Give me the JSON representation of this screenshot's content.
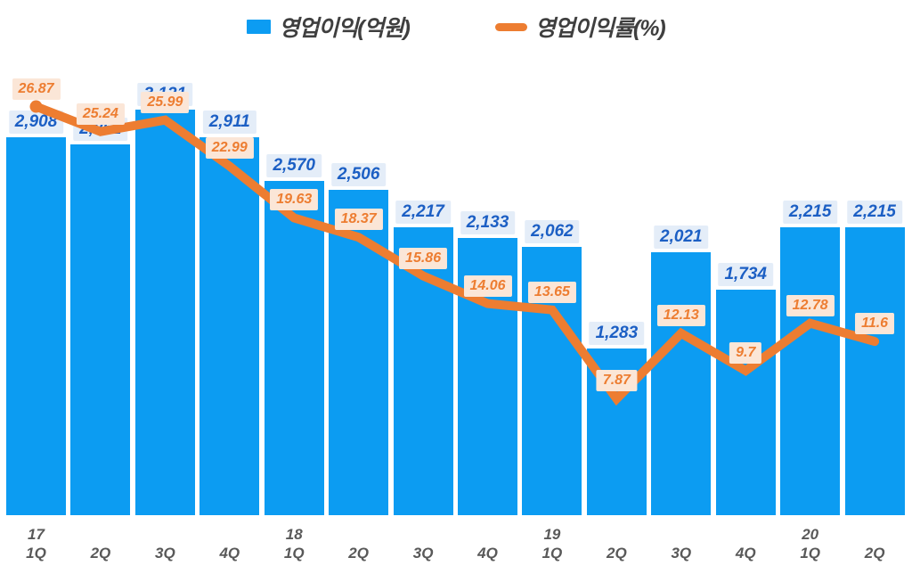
{
  "legend": {
    "bar_label": "영업이익(억원)",
    "line_label": "영업이익률(%)"
  },
  "colors": {
    "bar": "#0c9cf2",
    "line": "#ed7d31",
    "bar_label_text": "#1c5fc4",
    "bar_label_bg": "#e4edf8",
    "line_label_text": "#ed7d31",
    "line_label_bg": "#fbe6d7",
    "axis_text": "#595959",
    "legend_text": "#3f3f3f"
  },
  "chart_data": {
    "type": "combo-bar-line",
    "title": "",
    "grid": false,
    "legend_position": "top-center",
    "categories": [
      "17 1Q",
      "2Q",
      "3Q",
      "4Q",
      "18 1Q",
      "2Q",
      "3Q",
      "4Q",
      "19 1Q",
      "2Q",
      "3Q",
      "4Q",
      "20 1Q",
      "2Q"
    ],
    "category_years": [
      "17",
      "",
      "",
      "",
      "18",
      "",
      "",
      "",
      "19",
      "",
      "",
      "",
      "20",
      ""
    ],
    "category_quarters": [
      "1Q",
      "2Q",
      "3Q",
      "4Q",
      "1Q",
      "2Q",
      "3Q",
      "4Q",
      "1Q",
      "2Q",
      "3Q",
      "4Q",
      "1Q",
      "2Q"
    ],
    "series": [
      {
        "name": "영업이익(억원)",
        "type": "bar",
        "color": "#0c9cf2",
        "values": [
          2908,
          2852,
          3121,
          2911,
          2570,
          2506,
          2217,
          2133,
          2062,
          1283,
          2021,
          1734,
          2215,
          2215
        ],
        "labels": [
          "2,908",
          "2,852",
          "3,121",
          "2,911",
          "2,570",
          "2,506",
          "2,217",
          "2,133",
          "2,062",
          "1,283",
          "2,021",
          "1,734",
          "2,215",
          "2,215"
        ]
      },
      {
        "name": "영업이익률(%)",
        "type": "line",
        "color": "#ed7d31",
        "values": [
          26.87,
          25.24,
          25.99,
          22.99,
          19.63,
          18.37,
          15.86,
          14.06,
          13.65,
          7.87,
          12.13,
          9.7,
          12.78,
          11.6
        ],
        "labels": [
          "26.87",
          "25.24",
          "25.99",
          "22.99",
          "19.63",
          "18.37",
          "15.86",
          "14.06",
          "13.65",
          "7.87",
          "12.13",
          "9.7",
          "12.78",
          "11.6"
        ]
      }
    ],
    "bar_ylim": [
      0,
      3400
    ],
    "line_ylim": [
      0,
      28.6
    ]
  }
}
